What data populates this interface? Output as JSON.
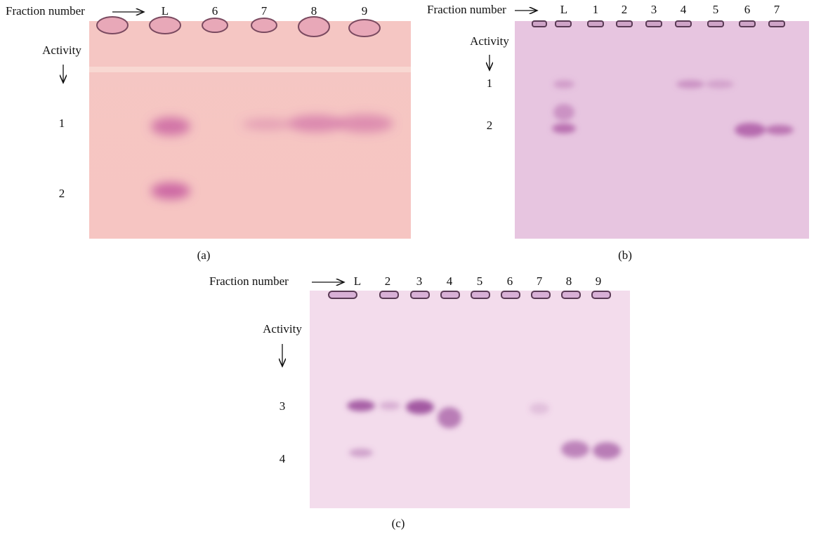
{
  "panels": [
    {
      "label": "(a)",
      "fraction_label": "Fraction number",
      "lanes": [
        "L",
        "6",
        "7",
        "8",
        "9"
      ],
      "activity_label": "Activity",
      "band_labels": [
        "1",
        "2"
      ]
    },
    {
      "label": "(b)",
      "fraction_label": "Fraction number",
      "lanes": [
        "L",
        "1",
        "2",
        "3",
        "4",
        "5",
        "6",
        "7"
      ],
      "activity_label": "Activity",
      "band_labels": [
        "1",
        "2"
      ]
    },
    {
      "label": "(c)",
      "fraction_label": "Fraction number",
      "lanes": [
        "L",
        "2",
        "3",
        "4",
        "5",
        "6",
        "7",
        "8",
        "9"
      ],
      "activity_label": "Activity",
      "band_labels": [
        "3",
        "4"
      ]
    }
  ]
}
